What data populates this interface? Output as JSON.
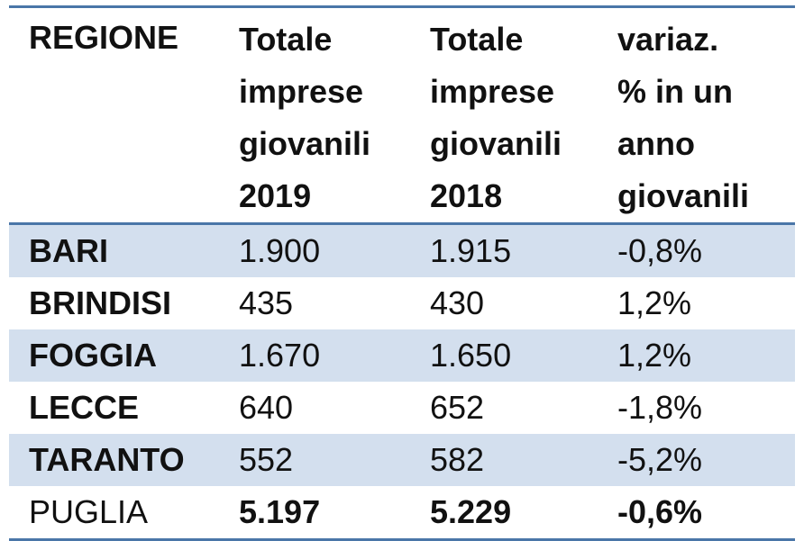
{
  "headers": [
    [
      "REGIONE"
    ],
    [
      "Totale",
      "imprese",
      "giovanili",
      "2019"
    ],
    [
      "Totale",
      "imprese",
      "giovanili",
      "2018"
    ],
    [
      "variaz.",
      "% in un",
      "anno",
      "giovanili"
    ]
  ],
  "rows": [
    {
      "regione": "BARI",
      "totale_2019": "1.900",
      "totale_2018": "1.915",
      "variazione": "-0,8%"
    },
    {
      "regione": "BRINDISI",
      "totale_2019": "435",
      "totale_2018": "430",
      "variazione": "1,2%"
    },
    {
      "regione": "FOGGIA",
      "totale_2019": "1.670",
      "totale_2018": "1.650",
      "variazione": "1,2%"
    },
    {
      "regione": "LECCE",
      "totale_2019": "640",
      "totale_2018": "652",
      "variazione": "-1,8%"
    },
    {
      "regione": "TARANTO",
      "totale_2019": "552",
      "totale_2018": "582",
      "variazione": "-5,2%"
    },
    {
      "regione": "PUGLIA",
      "totale_2019": "5.197",
      "totale_2018": "5.229",
      "variazione": "-0,6%"
    }
  ],
  "colors": {
    "accent_border": "#4a76a8",
    "row_shade": "#d3dfee"
  }
}
